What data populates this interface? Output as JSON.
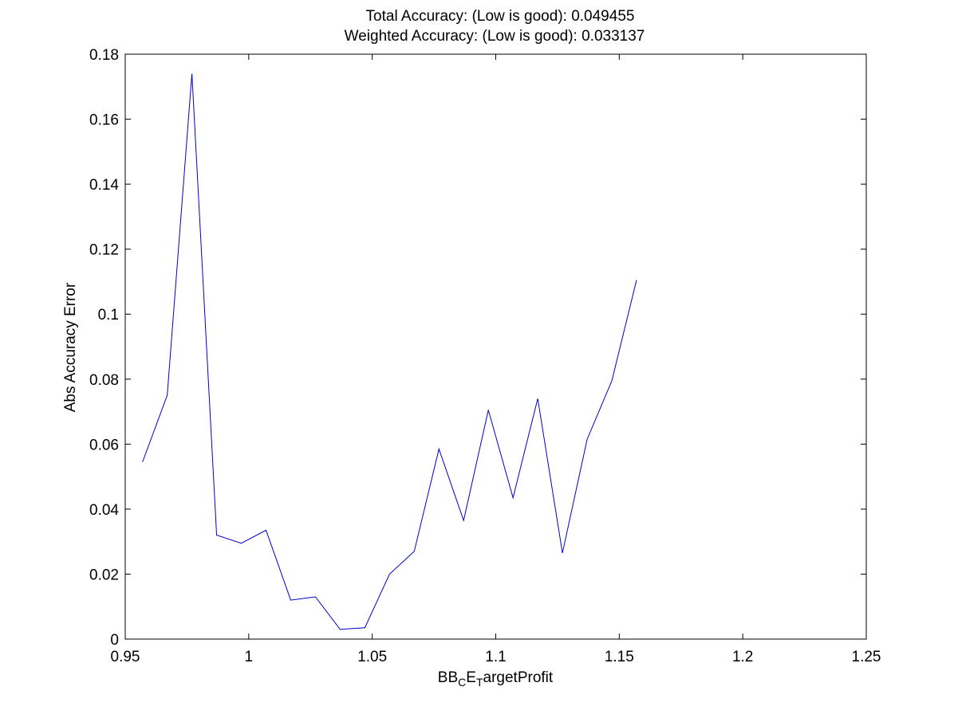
{
  "chart_data": {
    "type": "line",
    "title_lines": [
      "Total Accuracy: (Low is good): 0.049455",
      "Weighted Accuracy: (Low is good): 0.033137"
    ],
    "xlabel": {
      "parts": [
        {
          "text": "BB",
          "script": "normal"
        },
        {
          "text": "C",
          "script": "sub"
        },
        {
          "text": "E",
          "script": "normal"
        },
        {
          "text": "T",
          "script": "sub"
        },
        {
          "text": "argetProfit",
          "script": "normal"
        }
      ]
    },
    "ylabel": "Abs Accuracy Error",
    "xlim": [
      0.95,
      1.25
    ],
    "ylim": [
      0,
      0.18
    ],
    "x_ticks": [
      0.95,
      1,
      1.05,
      1.1,
      1.15,
      1.2,
      1.25
    ],
    "x_tick_labels": [
      "0.95",
      "1",
      "1.05",
      "1.1",
      "1.15",
      "1.2",
      "1.25"
    ],
    "y_ticks": [
      0,
      0.02,
      0.04,
      0.06,
      0.08,
      0.1,
      0.12,
      0.14,
      0.16,
      0.18
    ],
    "y_tick_labels": [
      "0",
      "0.02",
      "0.04",
      "0.06",
      "0.08",
      "0.1",
      "0.12",
      "0.14",
      "0.16",
      "0.18"
    ],
    "grid": false,
    "series": [
      {
        "color": "#0000cc",
        "x": [
          0.957,
          0.967,
          0.977,
          0.987,
          0.997,
          1.007,
          1.017,
          1.027,
          1.037,
          1.047,
          1.057,
          1.067,
          1.077,
          1.087,
          1.097,
          1.107,
          1.117,
          1.127,
          1.137,
          1.147,
          1.157
        ],
        "y": [
          0.0545,
          0.075,
          0.174,
          0.032,
          0.0295,
          0.0335,
          0.012,
          0.013,
          0.003,
          0.0035,
          0.02,
          0.027,
          0.0585,
          0.0365,
          0.0705,
          0.0435,
          0.074,
          0.0265,
          0.0615,
          0.0795,
          0.1105
        ]
      }
    ]
  }
}
